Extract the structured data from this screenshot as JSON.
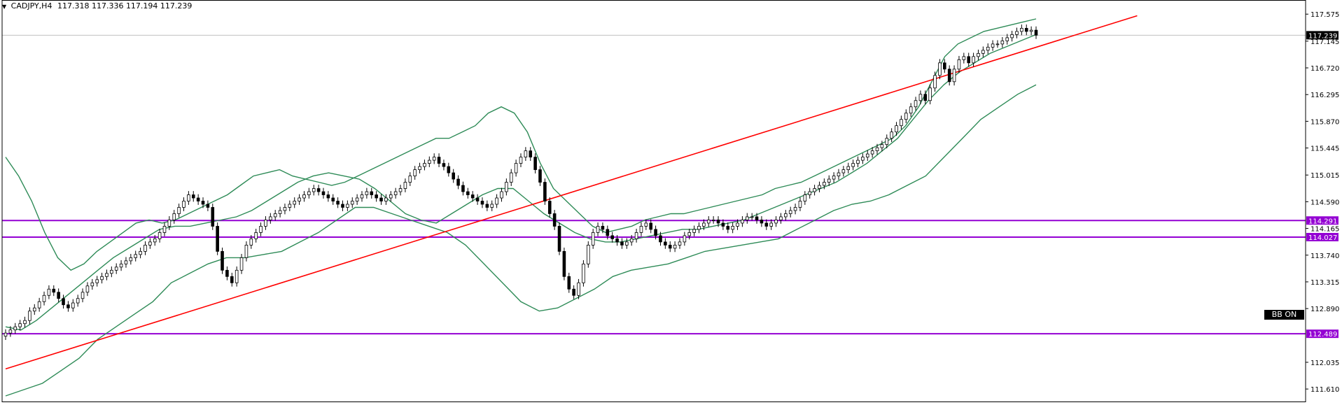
{
  "header": {
    "symbol": "CADJPY,H4",
    "ohlc": "117.318 117.336 117.194 117.239"
  },
  "badge": {
    "label": "BB ON"
  },
  "colors": {
    "background": "#ffffff",
    "candle": "#000000",
    "bollinger": "#2e8b57",
    "trendline": "#ff0000",
    "levels": "#9400d3",
    "current_price_line": "#c0c0c0"
  },
  "chart_data": {
    "type": "candlestick",
    "ylim": [
      111.4,
      117.8
    ],
    "yticks": [
      "117.575",
      "117.145",
      "116.720",
      "116.295",
      "115.870",
      "115.445",
      "115.015",
      "114.590",
      "114.165",
      "113.740",
      "113.315",
      "112.890",
      "112.035",
      "111.610"
    ],
    "current_price": "117.239",
    "horizontal_levels": [
      {
        "value": 114.291,
        "label": "114.291"
      },
      {
        "value": 114.027,
        "label": "114.027"
      },
      {
        "value": 112.489,
        "label": "112.489"
      }
    ],
    "trendline": {
      "start": [
        0,
        111.93
      ],
      "end": [
        235,
        117.55
      ]
    },
    "closes": [
      112.5,
      112.55,
      112.6,
      112.65,
      112.7,
      112.85,
      112.9,
      113.0,
      113.1,
      113.2,
      113.15,
      113.05,
      112.95,
      112.9,
      112.98,
      113.05,
      113.15,
      113.25,
      113.3,
      113.35,
      113.4,
      113.45,
      113.5,
      113.55,
      113.6,
      113.65,
      113.7,
      113.75,
      113.8,
      113.9,
      113.95,
      114.0,
      114.1,
      114.2,
      114.3,
      114.4,
      114.5,
      114.6,
      114.7,
      114.65,
      114.6,
      114.55,
      114.5,
      114.2,
      113.8,
      113.5,
      113.4,
      113.3,
      113.5,
      113.7,
      113.9,
      114.0,
      114.1,
      114.2,
      114.3,
      114.35,
      114.4,
      114.45,
      114.5,
      114.55,
      114.6,
      114.65,
      114.7,
      114.75,
      114.8,
      114.75,
      114.7,
      114.65,
      114.6,
      114.55,
      114.5,
      114.55,
      114.6,
      114.65,
      114.7,
      114.75,
      114.7,
      114.65,
      114.6,
      114.65,
      114.7,
      114.75,
      114.8,
      114.9,
      115.0,
      115.1,
      115.15,
      115.2,
      115.25,
      115.3,
      115.2,
      115.15,
      115.05,
      114.95,
      114.85,
      114.75,
      114.7,
      114.65,
      114.6,
      114.55,
      114.5,
      114.55,
      114.65,
      114.75,
      114.9,
      115.05,
      115.2,
      115.3,
      115.4,
      115.3,
      115.1,
      114.9,
      114.6,
      114.4,
      114.2,
      113.8,
      113.4,
      113.2,
      113.1,
      113.3,
      113.6,
      113.9,
      114.1,
      114.2,
      114.15,
      114.05,
      114.0,
      113.95,
      113.9,
      113.95,
      114.0,
      114.1,
      114.2,
      114.25,
      114.15,
      114.05,
      113.95,
      113.9,
      113.85,
      113.9,
      113.95,
      114.05,
      114.1,
      114.15,
      114.2,
      114.25,
      114.3,
      114.3,
      114.25,
      114.2,
      114.15,
      114.2,
      114.25,
      114.3,
      114.35,
      114.35,
      114.3,
      114.25,
      114.2,
      114.25,
      114.3,
      114.35,
      114.4,
      114.45,
      114.5,
      114.6,
      114.7,
      114.75,
      114.8,
      114.85,
      114.9,
      114.95,
      115.0,
      115.05,
      115.1,
      115.15,
      115.2,
      115.25,
      115.3,
      115.35,
      115.4,
      115.45,
      115.5,
      115.6,
      115.7,
      115.8,
      115.9,
      116.0,
      116.1,
      116.2,
      116.3,
      116.2,
      116.4,
      116.6,
      116.8,
      116.7,
      116.5,
      116.7,
      116.85,
      116.9,
      116.8,
      116.9,
      116.95,
      117.0,
      117.05,
      117.1,
      117.1,
      117.15,
      117.2,
      117.25,
      117.3,
      117.35,
      117.3,
      117.32,
      117.24
    ],
    "bb_upper": [
      115.3,
      115.0,
      114.6,
      114.1,
      113.7,
      113.5,
      113.6,
      113.8,
      113.95,
      114.1,
      114.25,
      114.3,
      114.25,
      114.3,
      114.4,
      114.5,
      114.6,
      114.7,
      114.85,
      115.0,
      115.05,
      115.1,
      115.0,
      114.95,
      114.9,
      114.85,
      114.9,
      115.0,
      115.1,
      115.2,
      115.3,
      115.4,
      115.5,
      115.6,
      115.6,
      115.7,
      115.8,
      116.0,
      116.1,
      116.0,
      115.7,
      115.2,
      114.8,
      114.6,
      114.4,
      114.2,
      114.1,
      114.15,
      114.2,
      114.3,
      114.35,
      114.4,
      114.4,
      114.45,
      114.5,
      114.55,
      114.6,
      114.65,
      114.7,
      114.8,
      114.85,
      114.9,
      115.0,
      115.1,
      115.2,
      115.3,
      115.4,
      115.5,
      115.6,
      115.8,
      116.1,
      116.5,
      116.9,
      117.1,
      117.2,
      117.3,
      117.35,
      117.4,
      117.45,
      117.5
    ],
    "bb_middle": [
      112.6,
      112.55,
      112.7,
      112.9,
      113.1,
      113.3,
      113.5,
      113.7,
      113.85,
      114.0,
      114.15,
      114.2,
      114.2,
      114.25,
      114.3,
      114.35,
      114.45,
      114.6,
      114.75,
      114.9,
      115.0,
      115.05,
      115.0,
      114.95,
      114.8,
      114.6,
      114.4,
      114.3,
      114.25,
      114.4,
      114.55,
      114.7,
      114.8,
      114.8,
      114.6,
      114.4,
      114.25,
      114.1,
      114.0,
      113.95,
      113.95,
      114.0,
      114.05,
      114.1,
      114.15,
      114.15,
      114.2,
      114.25,
      114.3,
      114.4,
      114.5,
      114.6,
      114.7,
      114.8,
      114.9,
      115.05,
      115.2,
      115.4,
      115.6,
      115.9,
      116.2,
      116.45,
      116.65,
      116.8,
      116.95,
      117.05,
      117.15,
      117.25
    ],
    "bb_lower": [
      111.5,
      111.6,
      111.7,
      111.9,
      112.1,
      112.4,
      112.6,
      112.8,
      113.0,
      113.3,
      113.45,
      113.6,
      113.7,
      113.7,
      113.75,
      113.8,
      113.95,
      114.1,
      114.3,
      114.5,
      114.5,
      114.4,
      114.3,
      114.2,
      114.1,
      113.9,
      113.6,
      113.3,
      113.0,
      112.85,
      112.9,
      113.05,
      113.2,
      113.4,
      113.5,
      113.55,
      113.6,
      113.7,
      113.8,
      113.85,
      113.9,
      113.95,
      114.0,
      114.15,
      114.3,
      114.45,
      114.55,
      114.6,
      114.7,
      114.85,
      115.0,
      115.3,
      115.6,
      115.9,
      116.1,
      116.3,
      116.45
    ]
  }
}
